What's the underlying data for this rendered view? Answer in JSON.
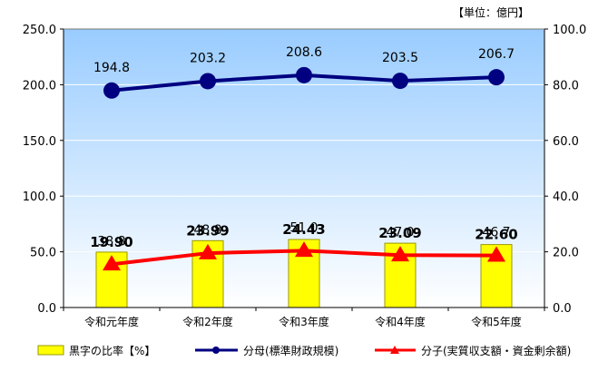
{
  "chart_data": {
    "type": "bar+line",
    "unit_label": "【単位：億円】",
    "categories": [
      "令和元年度",
      "令和2年度",
      "令和3年度",
      "令和4年度",
      "令和5年度"
    ],
    "left_axis": {
      "min": 0,
      "max": 250,
      "step": 50,
      "ticks": [
        "0.0",
        "50.0",
        "100.0",
        "150.0",
        "200.0",
        "250.0"
      ]
    },
    "right_axis": {
      "min": 0,
      "max": 100,
      "step": 20,
      "ticks": [
        "0.0",
        "20.0",
        "40.0",
        "60.0",
        "80.0",
        "100.0"
      ]
    },
    "series": [
      {
        "name": "黒字の比率【%】",
        "type": "bar",
        "axis": "right",
        "color": "#ffff00",
        "values": [
          19.9,
          23.99,
          24.43,
          23.09,
          22.6
        ],
        "labels": [
          "19.90",
          "23.99",
          "24.43",
          "23.09",
          "22.60"
        ]
      },
      {
        "name": "分母(標準財政規模)",
        "type": "line",
        "axis": "left",
        "color": "#000080",
        "marker": "circle",
        "values": [
          194.8,
          203.2,
          208.6,
          203.5,
          206.7
        ],
        "labels": [
          "194.8",
          "203.2",
          "208.6",
          "203.5",
          "206.7"
        ]
      },
      {
        "name": "分子(実質収支額・資金剰余額)",
        "type": "line",
        "axis": "left",
        "color": "#ff0000",
        "marker": "triangle",
        "values": [
          38.8,
          48.8,
          51.0,
          47.0,
          46.7
        ],
        "labels": [
          "38.8",
          "48.8",
          "51.0",
          "47.0",
          "46.7"
        ]
      }
    ],
    "plot_background": "#99ccff"
  }
}
